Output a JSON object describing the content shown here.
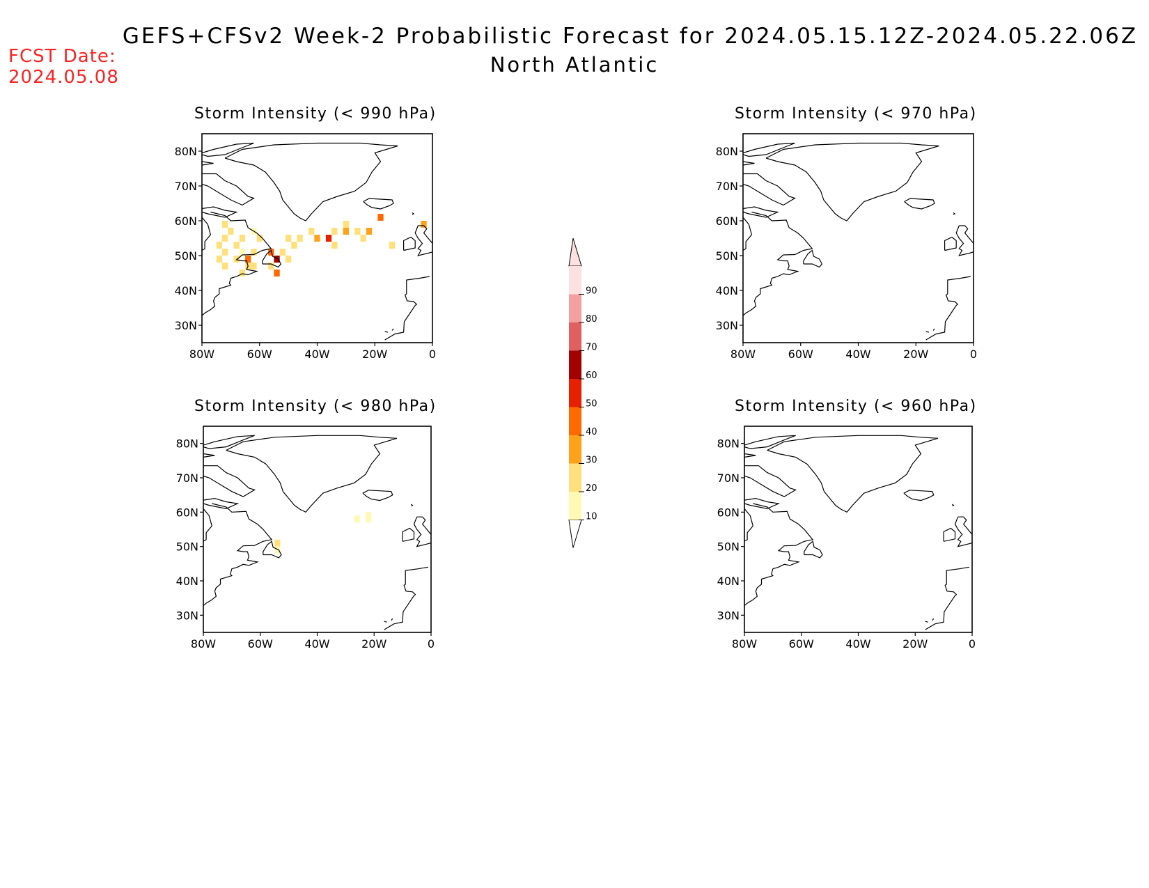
{
  "header": {
    "title": "GEFS+CFSv2 Week-2 Probabilistic Forecast for 2024.05.15.12Z-2024.05.22.06Z",
    "region": "North Atlantic",
    "fcst_label": "FCST Date:",
    "fcst_date": "2024.05.08"
  },
  "map": {
    "lon_ticks": [
      "80W",
      "60W",
      "40W",
      "20W",
      "0"
    ],
    "lat_ticks": [
      "80N",
      "70N",
      "60N",
      "50N",
      "40N",
      "30N"
    ]
  },
  "panels": [
    {
      "title": "Storm Intensity (< 990 hPa)",
      "cells": [
        {
          "lat": 59,
          "lon": -72,
          "prob": 20
        },
        {
          "lat": 57,
          "lon": -70,
          "prob": 20
        },
        {
          "lat": 55,
          "lon": -72,
          "prob": 20
        },
        {
          "lat": 53,
          "lon": -74,
          "prob": 20
        },
        {
          "lat": 51,
          "lon": -72,
          "prob": 20
        },
        {
          "lat": 49,
          "lon": -74,
          "prob": 20
        },
        {
          "lat": 47,
          "lon": -72,
          "prob": 20
        },
        {
          "lat": 55,
          "lon": -66,
          "prob": 20
        },
        {
          "lat": 53,
          "lon": -68,
          "prob": 20
        },
        {
          "lat": 51,
          "lon": -66,
          "prob": 10
        },
        {
          "lat": 49,
          "lon": -68,
          "prob": 20
        },
        {
          "lat": 47,
          "lon": -64,
          "prob": 20
        },
        {
          "lat": 45,
          "lon": -66,
          "prob": 20
        },
        {
          "lat": 57,
          "lon": -62,
          "prob": 10
        },
        {
          "lat": 55,
          "lon": -60,
          "prob": 20
        },
        {
          "lat": 51,
          "lon": -62,
          "prob": 20
        },
        {
          "lat": 49,
          "lon": -64,
          "prob": 40
        },
        {
          "lat": 47,
          "lon": -62,
          "prob": 20
        },
        {
          "lat": 51,
          "lon": -56,
          "prob": 40
        },
        {
          "lat": 49,
          "lon": -54,
          "prob": 60
        },
        {
          "lat": 47,
          "lon": -56,
          "prob": 20
        },
        {
          "lat": 45,
          "lon": -54,
          "prob": 40
        },
        {
          "lat": 51,
          "lon": -52,
          "prob": 20
        },
        {
          "lat": 49,
          "lon": -50,
          "prob": 20
        },
        {
          "lat": 53,
          "lon": -48,
          "prob": 20
        },
        {
          "lat": 55,
          "lon": -50,
          "prob": 20
        },
        {
          "lat": 55,
          "lon": -46,
          "prob": 20
        },
        {
          "lat": 57,
          "lon": -42,
          "prob": 20
        },
        {
          "lat": 55,
          "lon": -40,
          "prob": 30
        },
        {
          "lat": 55,
          "lon": -36,
          "prob": 50
        },
        {
          "lat": 57,
          "lon": -34,
          "prob": 20
        },
        {
          "lat": 53,
          "lon": -34,
          "prob": 20
        },
        {
          "lat": 59,
          "lon": -30,
          "prob": 20
        },
        {
          "lat": 57,
          "lon": -30,
          "prob": 30
        },
        {
          "lat": 57,
          "lon": -26,
          "prob": 20
        },
        {
          "lat": 55,
          "lon": -24,
          "prob": 20
        },
        {
          "lat": 57,
          "lon": -22,
          "prob": 30
        },
        {
          "lat": 61,
          "lon": -18,
          "prob": 40
        },
        {
          "lat": 53,
          "lon": -14,
          "prob": 20
        },
        {
          "lat": 59,
          "lon": -3,
          "prob": 30
        }
      ]
    },
    {
      "title": "Storm Intensity (< 980 hPa)",
      "cells": [
        {
          "lat": 51,
          "lon": -54,
          "prob": 20
        },
        {
          "lat": 49,
          "lon": -54,
          "prob": 10
        },
        {
          "lat": 58,
          "lon": -26,
          "prob": 10
        },
        {
          "lat": 58,
          "lon": -22,
          "prob": 10
        },
        {
          "lat": 59,
          "lon": -22,
          "prob": 10
        }
      ]
    },
    {
      "title": "Storm Intensity (< 970 hPa)",
      "cells": []
    },
    {
      "title": "Storm Intensity (< 960 hPa)",
      "cells": []
    }
  ],
  "colorbar": {
    "labels": [
      "10",
      "20",
      "30",
      "40",
      "50",
      "60",
      "70",
      "80",
      "90"
    ],
    "colors": [
      "#fff9b4",
      "#ffe07a",
      "#ffa21a",
      "#ff6a00",
      "#e62000",
      "#a50000",
      "#e06060",
      "#f4a0a0",
      "#fde0e0"
    ]
  },
  "colors": {
    "fcst_red": "#ff2020",
    "coast": "#000000"
  }
}
